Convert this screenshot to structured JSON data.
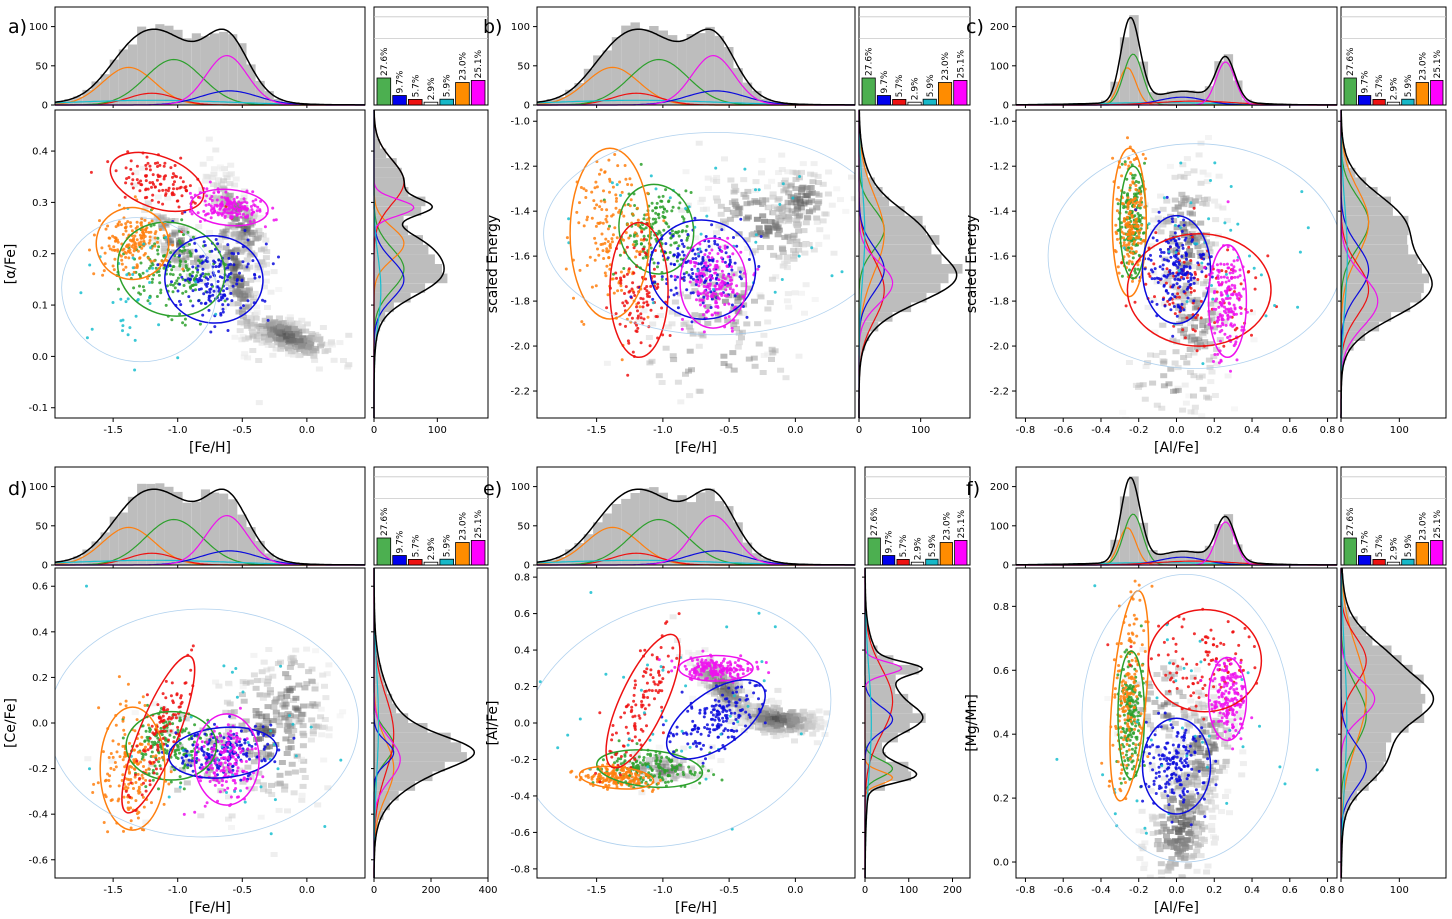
{
  "chart_data": [
    {
      "type": "scatter",
      "panel_label": "a)",
      "xlabel": "[Fe/H]",
      "ylabel": "[α/Fe]",
      "xlim": [
        -1.95,
        0.45
      ],
      "ylim": [
        -0.12,
        0.48
      ],
      "xticks": [
        -1.5,
        -1.0,
        -0.5,
        0.0
      ],
      "xtick_labels": [
        "-1.5",
        "-1.0",
        "-0.5",
        "0.0"
      ],
      "yticks": [
        -0.1,
        0.0,
        0.1,
        0.2,
        0.3,
        0.4
      ],
      "ytick_labels": [
        "-0.1",
        "0.0",
        "0.1",
        "0.2",
        "0.3",
        "0.4"
      ],
      "top_hist_ylim": [
        0,
        125
      ],
      "top_hist_yticks": [
        0,
        50,
        100
      ],
      "right_hist_xlim": [
        0,
        180
      ],
      "right_hist_xticks": [
        0,
        100
      ],
      "right_hist_xtick_labels": [
        "0",
        "100"
      ],
      "ellipses": [
        {
          "series": "green",
          "cx": -1.05,
          "cy": 0.17,
          "rx": 0.42,
          "ry": 0.09,
          "angle": -18
        },
        {
          "series": "orange",
          "cx": -1.35,
          "cy": 0.22,
          "rx": 0.28,
          "ry": 0.07,
          "angle": -20
        },
        {
          "series": "red",
          "cx": -1.16,
          "cy": 0.34,
          "rx": 0.2,
          "ry": 0.095,
          "angle": 70
        },
        {
          "series": "blue",
          "cx": -0.72,
          "cy": 0.15,
          "rx": 0.38,
          "ry": 0.085,
          "angle": -5
        },
        {
          "series": "magenta",
          "cx": -0.6,
          "cy": 0.29,
          "rx": 0.3,
          "ry": 0.035,
          "angle": -5
        },
        {
          "series": "cyan",
          "cx": -1.3,
          "cy": 0.13,
          "rx": 0.6,
          "ry": 0.14,
          "angle": -10
        }
      ]
    },
    {
      "type": "scatter",
      "panel_label": "b)",
      "xlabel": "[Fe/H]",
      "ylabel": "scaled Energy",
      "xlim": [
        -1.95,
        0.45
      ],
      "ylim": [
        -2.32,
        -0.95
      ],
      "xticks": [
        -1.5,
        -1.0,
        -0.5,
        0.0
      ],
      "xtick_labels": [
        "-1.5",
        "-1.0",
        "-0.5",
        "0.0"
      ],
      "yticks": [
        -2.2,
        -2.0,
        -1.8,
        -1.6,
        -1.4,
        -1.2,
        -1.0
      ],
      "ytick_labels": [
        "-2.2",
        "-2.0",
        "-1.8",
        "-1.6",
        "-1.4",
        "-1.2",
        "-1.0"
      ],
      "top_hist_ylim": [
        0,
        125
      ],
      "top_hist_yticks": [
        0,
        50,
        100
      ],
      "right_hist_xlim": [
        0,
        180
      ],
      "right_hist_xticks": [
        0,
        100
      ],
      "right_hist_xtick_labels": [
        "0",
        "100"
      ],
      "ellipses": [
        {
          "series": "green",
          "cx": -1.05,
          "cy": -1.48,
          "rx": 0.28,
          "ry": 0.2,
          "angle": 10
        },
        {
          "series": "orange",
          "cx": -1.4,
          "cy": -1.5,
          "rx": 0.3,
          "ry": 0.38,
          "angle": 0
        },
        {
          "series": "red",
          "cx": -1.18,
          "cy": -1.75,
          "rx": 0.22,
          "ry": 0.3,
          "angle": 0
        },
        {
          "series": "blue",
          "cx": -0.7,
          "cy": -1.66,
          "rx": 0.4,
          "ry": 0.22,
          "angle": -10
        },
        {
          "series": "magenta",
          "cx": -0.62,
          "cy": -1.72,
          "rx": 0.25,
          "ry": 0.2,
          "angle": 0
        },
        {
          "series": "cyan",
          "cx": -0.6,
          "cy": -1.5,
          "rx": 1.3,
          "ry": 0.45,
          "angle": 0
        }
      ]
    },
    {
      "type": "scatter",
      "panel_label": "c)",
      "xlabel": "[Al/Fe]",
      "ylabel": "scaled Energy",
      "xlim": [
        -0.85,
        0.85
      ],
      "ylim": [
        -2.32,
        -0.95
      ],
      "xticks": [
        -0.8,
        -0.6,
        -0.4,
        -0.2,
        0.0,
        0.2,
        0.4,
        0.6,
        0.8
      ],
      "xtick_labels": [
        "-0.8",
        "-0.6",
        "-0.4",
        "-0.2",
        "0.0",
        "0.2",
        "0.4",
        "0.6",
        "0.8"
      ],
      "yticks": [
        -2.2,
        -2.0,
        -1.8,
        -1.6,
        -1.4,
        -1.2,
        -1.0
      ],
      "ytick_labels": [
        "-2.2",
        "-2.0",
        "-1.8",
        "-1.6",
        "-1.4",
        "-1.2",
        "-1.0"
      ],
      "top_hist_ylim": [
        0,
        250
      ],
      "top_hist_yticks": [
        0,
        100,
        200
      ],
      "right_hist_xlim": [
        0,
        180
      ],
      "right_hist_xticks": [
        0,
        100
      ],
      "right_hist_xtick_labels": [
        "0",
        "100"
      ],
      "ellipses": [
        {
          "series": "green",
          "cx": -0.23,
          "cy": -1.45,
          "rx": 0.07,
          "ry": 0.25,
          "angle": 0
        },
        {
          "series": "orange",
          "cx": -0.25,
          "cy": -1.45,
          "rx": 0.09,
          "ry": 0.33,
          "angle": 0
        },
        {
          "series": "red",
          "cx": 0.12,
          "cy": -1.75,
          "rx": 0.38,
          "ry": 0.25,
          "angle": 0
        },
        {
          "series": "blue",
          "cx": 0.0,
          "cy": -1.66,
          "rx": 0.18,
          "ry": 0.24,
          "angle": 0
        },
        {
          "series": "magenta",
          "cx": 0.27,
          "cy": -1.8,
          "rx": 0.1,
          "ry": 0.25,
          "angle": 0
        },
        {
          "series": "cyan",
          "cx": 0.1,
          "cy": -1.6,
          "rx": 0.78,
          "ry": 0.5,
          "angle": 0
        }
      ]
    },
    {
      "type": "scatter",
      "panel_label": "d)",
      "xlabel": "[Fe/H]",
      "ylabel": "[Ce/Fe]",
      "xlim": [
        -1.95,
        0.45
      ],
      "ylim": [
        -0.68,
        0.68
      ],
      "xticks": [
        -1.5,
        -1.0,
        -0.5,
        0.0
      ],
      "xtick_labels": [
        "-1.5",
        "-1.0",
        "-0.5",
        "0.0"
      ],
      "yticks": [
        -0.6,
        -0.4,
        -0.2,
        0.0,
        0.2,
        0.4,
        0.6
      ],
      "ytick_labels": [
        "-0.6",
        "-0.4",
        "-0.2",
        "0.0",
        "0.2",
        "0.4",
        "0.6"
      ],
      "top_hist_ylim": [
        0,
        125
      ],
      "top_hist_yticks": [
        0,
        50,
        100
      ],
      "right_hist_xlim": [
        0,
        400
      ],
      "right_hist_xticks": [
        0,
        200,
        400
      ],
      "right_hist_xtick_labels": [
        "0",
        "200",
        "400"
      ],
      "ellipses": [
        {
          "series": "green",
          "cx": -1.05,
          "cy": -0.1,
          "rx": 0.35,
          "ry": 0.15,
          "angle": 0
        },
        {
          "series": "orange",
          "cx": -1.35,
          "cy": -0.2,
          "rx": 0.25,
          "ry": 0.27,
          "angle": 0
        },
        {
          "series": "red",
          "cx": -1.15,
          "cy": -0.05,
          "rx": 0.15,
          "ry": 0.37,
          "angle": -22
        },
        {
          "series": "blue",
          "cx": -0.65,
          "cy": -0.13,
          "rx": 0.42,
          "ry": 0.11,
          "angle": 5
        },
        {
          "series": "magenta",
          "cx": -0.62,
          "cy": -0.16,
          "rx": 0.25,
          "ry": 0.2,
          "angle": 0
        },
        {
          "series": "cyan",
          "cx": -0.8,
          "cy": 0.0,
          "rx": 1.2,
          "ry": 0.5,
          "angle": 0
        }
      ]
    },
    {
      "type": "scatter",
      "panel_label": "e)",
      "xlabel": "[Fe/H]",
      "ylabel": "[Al/Fe]",
      "xlim": [
        -1.95,
        0.45
      ],
      "ylim": [
        -0.85,
        0.85
      ],
      "xticks": [
        -1.5,
        -1.0,
        -0.5,
        0.0
      ],
      "xtick_labels": [
        "-1.5",
        "-1.0",
        "-0.5",
        "0.0"
      ],
      "yticks": [
        -0.8,
        -0.6,
        -0.4,
        -0.2,
        0.0,
        0.2,
        0.4,
        0.6,
        0.8
      ],
      "ytick_labels": [
        "-0.8",
        "-0.6",
        "-0.4",
        "-0.2",
        "0.0",
        "0.2",
        "0.4",
        "0.6",
        "0.8"
      ],
      "top_hist_ylim": [
        0,
        125
      ],
      "top_hist_yticks": [
        0,
        50,
        100
      ],
      "right_hist_xlim": [
        0,
        240
      ],
      "right_hist_xticks": [
        0,
        100,
        200
      ],
      "right_hist_xtick_labels": [
        "0",
        "100",
        "200"
      ],
      "ellipses": [
        {
          "series": "green",
          "cx": -1.1,
          "cy": -0.25,
          "rx": 0.4,
          "ry": 0.1,
          "angle": -5
        },
        {
          "series": "orange",
          "cx": -1.35,
          "cy": -0.3,
          "rx": 0.28,
          "ry": 0.06,
          "angle": -5
        },
        {
          "series": "red",
          "cx": -1.15,
          "cy": 0.12,
          "rx": 0.17,
          "ry": 0.4,
          "angle": -25
        },
        {
          "series": "blue",
          "cx": -0.6,
          "cy": 0.02,
          "rx": 0.43,
          "ry": 0.15,
          "angle": 35
        },
        {
          "series": "magenta",
          "cx": -0.6,
          "cy": 0.3,
          "rx": 0.28,
          "ry": 0.07,
          "angle": 0
        },
        {
          "series": "cyan",
          "cx": -0.9,
          "cy": 0.0,
          "rx": 1.2,
          "ry": 0.65,
          "angle": 20
        }
      ]
    },
    {
      "type": "scatter",
      "panel_label": "f)",
      "xlabel": "[Al/Fe]",
      "ylabel": "[Mg/Mn]",
      "xlim": [
        -0.85,
        0.85
      ],
      "ylim": [
        -0.05,
        0.92
      ],
      "xticks": [
        -0.8,
        -0.6,
        -0.4,
        -0.2,
        0.0,
        0.2,
        0.4,
        0.6,
        0.8
      ],
      "xtick_labels": [
        "-0.8",
        "-0.6",
        "-0.4",
        "-0.2",
        "0.0",
        "0.2",
        "0.4",
        "0.6",
        "0.8"
      ],
      "yticks": [
        0.0,
        0.2,
        0.4,
        0.6,
        0.8
      ],
      "ytick_labels": [
        "0.0",
        "0.2",
        "0.4",
        "0.6",
        "0.8"
      ],
      "top_hist_ylim": [
        0,
        250
      ],
      "top_hist_yticks": [
        0,
        100,
        200
      ],
      "right_hist_xlim": [
        0,
        180
      ],
      "right_hist_xticks": [
        0,
        100
      ],
      "right_hist_xtick_labels": [
        "0",
        "100"
      ],
      "ellipses": [
        {
          "series": "green",
          "cx": -0.24,
          "cy": 0.46,
          "rx": 0.07,
          "ry": 0.2,
          "angle": 0
        },
        {
          "series": "orange",
          "cx": -0.25,
          "cy": 0.52,
          "rx": 0.09,
          "ry": 0.33,
          "angle": -5
        },
        {
          "series": "red",
          "cx": 0.15,
          "cy": 0.63,
          "rx": 0.3,
          "ry": 0.16,
          "angle": 0
        },
        {
          "series": "blue",
          "cx": 0.0,
          "cy": 0.3,
          "rx": 0.18,
          "ry": 0.15,
          "angle": 0
        },
        {
          "series": "magenta",
          "cx": 0.27,
          "cy": 0.51,
          "rx": 0.1,
          "ry": 0.13,
          "angle": 0
        },
        {
          "series": "cyan",
          "cx": 0.05,
          "cy": 0.45,
          "rx": 0.55,
          "ry": 0.45,
          "angle": 0
        }
      ]
    }
  ],
  "weights": {
    "labels": [
      "27.6%",
      "9.7%",
      "5.7%",
      "2.9%",
      "5.9%",
      "23.0%",
      "25.1%"
    ],
    "values": [
      27.6,
      9.7,
      5.7,
      2.9,
      5.9,
      23.0,
      25.1
    ],
    "colors": [
      "#4caf50",
      "#0000ee",
      "#ee1111",
      "#ffffff",
      "#17b8c8",
      "#ff8c00",
      "#ff00ff"
    ]
  },
  "metallicity_hist": {
    "components": [
      {
        "series": "orange",
        "mu": -1.38,
        "sigma": 0.2,
        "amp": 48
      },
      {
        "series": "red",
        "mu": -1.2,
        "sigma": 0.18,
        "amp": 15
      },
      {
        "series": "green",
        "mu": -1.03,
        "sigma": 0.22,
        "amp": 58
      },
      {
        "series": "cyan",
        "mu": -1.2,
        "sigma": 0.6,
        "amp": 6
      },
      {
        "series": "blue",
        "mu": -0.6,
        "sigma": 0.22,
        "amp": 18
      },
      {
        "series": "magenta",
        "mu": -0.62,
        "sigma": 0.16,
        "amp": 63
      }
    ]
  },
  "alfe_hist": {
    "components": [
      {
        "series": "orange",
        "mu": -0.26,
        "sigma": 0.045,
        "amp": 95
      },
      {
        "series": "green",
        "mu": -0.23,
        "sigma": 0.05,
        "amp": 130
      },
      {
        "series": "cyan",
        "mu": -0.1,
        "sigma": 0.35,
        "amp": 6
      },
      {
        "series": "blue",
        "mu": 0.03,
        "sigma": 0.12,
        "amp": 20
      },
      {
        "series": "red",
        "mu": 0.1,
        "sigma": 0.2,
        "amp": 10
      },
      {
        "series": "magenta",
        "mu": 0.26,
        "sigma": 0.05,
        "amp": 110
      }
    ]
  },
  "colors": {
    "green": "#2ca02c",
    "orange": "#ff7f0e",
    "red": "#ee1111",
    "blue": "#0b0bdd",
    "magenta": "#ee11ee",
    "cyan": "#17becf",
    "total": "#000000",
    "hist_fill": "#bdbdbd"
  }
}
